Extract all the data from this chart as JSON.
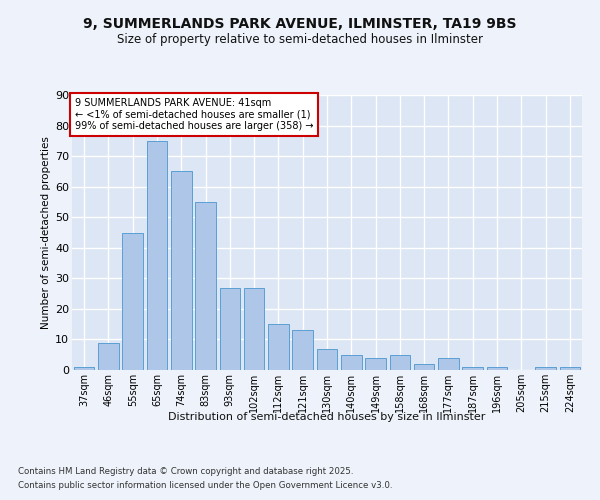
{
  "title1": "9, SUMMERLANDS PARK AVENUE, ILMINSTER, TA19 9BS",
  "title2": "Size of property relative to semi-detached houses in Ilminster",
  "xlabel": "Distribution of semi-detached houses by size in Ilminster",
  "ylabel": "Number of semi-detached properties",
  "categories": [
    "37sqm",
    "46sqm",
    "55sqm",
    "65sqm",
    "74sqm",
    "83sqm",
    "93sqm",
    "102sqm",
    "112sqm",
    "121sqm",
    "130sqm",
    "140sqm",
    "149sqm",
    "158sqm",
    "168sqm",
    "177sqm",
    "187sqm",
    "196sqm",
    "205sqm",
    "215sqm",
    "224sqm"
  ],
  "values": [
    1,
    9,
    45,
    75,
    65,
    55,
    27,
    27,
    15,
    13,
    7,
    5,
    4,
    5,
    2,
    4,
    1,
    1,
    0,
    1,
    1
  ],
  "bar_color": "#aec6e8",
  "bar_edge_color": "#5a9fd4",
  "annotation_text": "9 SUMMERLANDS PARK AVENUE: 41sqm\n← <1% of semi-detached houses are smaller (1)\n99% of semi-detached houses are larger (358) →",
  "annotation_box_color": "#ffffff",
  "annotation_box_edge": "#cc0000",
  "footer1": "Contains HM Land Registry data © Crown copyright and database right 2025.",
  "footer2": "Contains public sector information licensed under the Open Government Licence v3.0.",
  "bg_color": "#eef2fa",
  "plot_bg_color": "#dce6f5",
  "grid_color": "#ffffff",
  "ylim": [
    0,
    90
  ],
  "yticks": [
    0,
    10,
    20,
    30,
    40,
    50,
    60,
    70,
    80,
    90
  ]
}
